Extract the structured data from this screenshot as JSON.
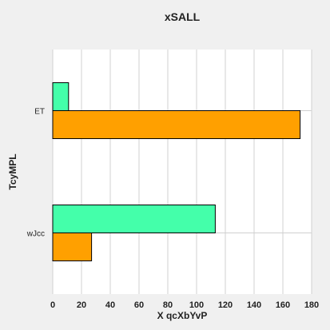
{
  "chart_data": {
    "type": "bar",
    "orientation": "horizontal",
    "title": "xSALL",
    "xlabel": "X  qcXbYvP",
    "ylabel": "TcyMPL",
    "categories": [
      "ET",
      "wJcc"
    ],
    "xlim": [
      0,
      180
    ],
    "xticks": [
      0,
      20,
      40,
      60,
      80,
      100,
      120,
      140,
      160,
      180
    ],
    "grid": true,
    "legend": "none",
    "series": [
      {
        "values": [
          11,
          113
        ],
        "color": "#44ffaa"
      },
      {
        "values": [
          172,
          27
        ],
        "color": "#ffa000"
      }
    ]
  }
}
